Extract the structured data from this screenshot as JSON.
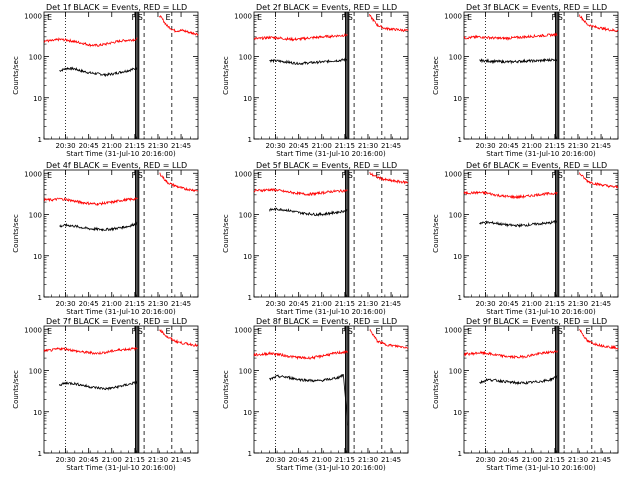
{
  "colors": {
    "events": "#000000",
    "lld": "#ff0000",
    "axes": "#000000",
    "background": "#ffffff"
  },
  "shared": {
    "ylabel": "Counts/sec",
    "xlabel": "Start Time (31-Jul-10 20:16:00)",
    "yticks": [
      1,
      10,
      100,
      1000
    ],
    "ytick_labels": [
      "1",
      "10",
      "100",
      "1000"
    ],
    "xtick_labels": [
      "20:30",
      "20:45",
      "21:00",
      "21:15",
      "21:30",
      "21:45"
    ],
    "xtick_values_min": [
      14,
      29,
      44,
      59,
      74,
      89
    ],
    "xlim_min": [
      0,
      100
    ],
    "ylim": [
      1,
      1200
    ],
    "yscale": "log",
    "marker_labels": [
      "F",
      "S",
      "E"
    ]
  },
  "chart_data": [
    {
      "type": "line",
      "title": "Det 1f BLACK = Events, RED = LLD",
      "series": [
        {
          "name": "BLACK = Events",
          "start_min": 10,
          "x": [
            10,
            15,
            20,
            25,
            30,
            35,
            40,
            45,
            50,
            55,
            60,
            61,
            62,
            75,
            80,
            85,
            90,
            95,
            100
          ],
          "values": [
            45,
            52,
            50,
            44,
            40,
            38,
            36,
            38,
            42,
            46,
            52,
            55,
            null,
            null,
            null,
            null,
            null,
            null,
            null
          ]
        },
        {
          "name": "RED = LLD",
          "start_min": 0,
          "x": [
            0,
            5,
            10,
            15,
            20,
            25,
            30,
            35,
            40,
            45,
            50,
            55,
            60,
            61,
            62,
            75,
            80,
            85,
            90,
            95,
            100
          ],
          "values": [
            240,
            240,
            260,
            250,
            230,
            210,
            190,
            185,
            200,
            220,
            240,
            250,
            260,
            270,
            null,
            1000,
            550,
            420,
            430,
            380,
            350
          ]
        }
      ],
      "markers": {
        "flare_lines_min": [
          59.5,
          60.5,
          61.5
        ],
        "dotted_min": [
          14
        ],
        "dashed_min": [
          65,
          83
        ]
      }
    },
    {
      "type": "line",
      "title": "Det 2f BLACK = Events, RED = LLD",
      "series": [
        {
          "name": "BLACK = Events",
          "start_min": 10,
          "x": [
            10,
            15,
            20,
            25,
            30,
            35,
            40,
            45,
            50,
            55,
            60,
            61,
            62,
            75,
            80,
            85,
            90,
            95,
            100
          ],
          "values": [
            80,
            78,
            75,
            70,
            68,
            70,
            72,
            74,
            78,
            80,
            85,
            88,
            null,
            null,
            null,
            null,
            null,
            null,
            null
          ]
        },
        {
          "name": "RED = LLD",
          "start_min": 0,
          "x": [
            0,
            5,
            10,
            15,
            20,
            25,
            30,
            35,
            40,
            45,
            50,
            55,
            60,
            61,
            62,
            75,
            80,
            85,
            90,
            95,
            100
          ],
          "values": [
            270,
            275,
            290,
            285,
            270,
            260,
            265,
            280,
            290,
            300,
            310,
            320,
            330,
            340,
            null,
            1000,
            580,
            480,
            460,
            440,
            420
          ]
        }
      ],
      "markers": {
        "flare_lines_min": [
          59.5,
          60.5,
          61.5
        ],
        "dotted_min": [
          14
        ],
        "dashed_min": [
          65,
          83
        ]
      }
    },
    {
      "type": "line",
      "title": "Det 3f BLACK = Events, RED = LLD",
      "series": [
        {
          "name": "BLACK = Events",
          "start_min": 10,
          "x": [
            10,
            15,
            20,
            25,
            30,
            35,
            40,
            45,
            50,
            55,
            60,
            61,
            62,
            75,
            80,
            85,
            90,
            95,
            100
          ],
          "values": [
            80,
            78,
            76,
            75,
            74,
            76,
            78,
            78,
            80,
            82,
            85,
            88,
            null,
            null,
            null,
            null,
            null,
            null,
            null
          ]
        },
        {
          "name": "RED = LLD",
          "start_min": 0,
          "x": [
            0,
            5,
            10,
            15,
            20,
            25,
            30,
            35,
            40,
            45,
            50,
            55,
            60,
            61,
            62,
            75,
            80,
            85,
            90,
            95,
            100
          ],
          "values": [
            280,
            290,
            300,
            290,
            280,
            275,
            280,
            290,
            300,
            310,
            320,
            330,
            340,
            350,
            null,
            1000,
            600,
            520,
            480,
            440,
            420
          ]
        }
      ],
      "markers": {
        "flare_lines_min": [
          59.5,
          60.5,
          61.5
        ],
        "dotted_min": [
          14
        ],
        "dashed_min": [
          65,
          83
        ]
      }
    },
    {
      "type": "line",
      "title": "Det 4f BLACK = Events, RED = LLD",
      "series": [
        {
          "name": "BLACK = Events",
          "start_min": 10,
          "x": [
            10,
            15,
            20,
            25,
            30,
            35,
            40,
            45,
            50,
            55,
            60,
            61,
            62,
            75,
            80,
            85,
            90,
            95,
            100
          ],
          "values": [
            52,
            55,
            52,
            48,
            45,
            44,
            43,
            45,
            48,
            52,
            60,
            65,
            null,
            null,
            null,
            null,
            null,
            null,
            null
          ]
        },
        {
          "name": "RED = LLD",
          "start_min": 0,
          "x": [
            0,
            5,
            10,
            15,
            20,
            25,
            30,
            35,
            40,
            45,
            50,
            55,
            60,
            61,
            62,
            75,
            80,
            85,
            90,
            95,
            100
          ],
          "values": [
            230,
            225,
            240,
            230,
            210,
            195,
            185,
            180,
            190,
            200,
            220,
            230,
            240,
            250,
            null,
            1000,
            600,
            500,
            430,
            400,
            380
          ]
        }
      ],
      "markers": {
        "flare_lines_min": [
          59.5,
          60.5,
          61.5
        ],
        "dotted_min": [
          14
        ],
        "dashed_min": [
          65,
          83
        ]
      }
    },
    {
      "type": "line",
      "title": "Det 5f BLACK = Events, RED = LLD",
      "series": [
        {
          "name": "BLACK = Events",
          "start_min": 10,
          "x": [
            10,
            15,
            20,
            25,
            30,
            35,
            40,
            45,
            50,
            55,
            60,
            61,
            62,
            75,
            80,
            85,
            90,
            95,
            100
          ],
          "values": [
            130,
            135,
            130,
            120,
            110,
            105,
            100,
            102,
            108,
            115,
            125,
            130,
            null,
            null,
            null,
            null,
            null,
            null,
            null
          ]
        },
        {
          "name": "RED = LLD",
          "start_min": 0,
          "x": [
            0,
            5,
            10,
            15,
            20,
            25,
            30,
            35,
            40,
            45,
            50,
            55,
            60,
            61,
            62,
            75,
            80,
            85,
            90,
            95,
            100
          ],
          "values": [
            380,
            385,
            400,
            390,
            360,
            340,
            320,
            310,
            320,
            340,
            360,
            370,
            380,
            390,
            null,
            1000,
            800,
            700,
            650,
            620,
            600
          ]
        }
      ],
      "markers": {
        "flare_lines_min": [
          59.5,
          60.5,
          61.5
        ],
        "dotted_min": [
          14
        ],
        "dashed_min": [
          65,
          83
        ]
      }
    },
    {
      "type": "line",
      "title": "Det 6f BLACK = Events, RED = LLD",
      "series": [
        {
          "name": "BLACK = Events",
          "start_min": 10,
          "x": [
            10,
            15,
            20,
            25,
            30,
            35,
            40,
            45,
            50,
            55,
            60,
            61,
            62,
            75,
            80,
            85,
            90,
            95,
            100
          ],
          "values": [
            62,
            64,
            62,
            58,
            55,
            54,
            55,
            58,
            60,
            62,
            68,
            72,
            null,
            null,
            null,
            null,
            null,
            null,
            null
          ]
        },
        {
          "name": "RED = LLD",
          "start_min": 0,
          "x": [
            0,
            5,
            10,
            15,
            20,
            25,
            30,
            35,
            40,
            45,
            50,
            55,
            60,
            61,
            62,
            75,
            80,
            85,
            90,
            95,
            100
          ],
          "values": [
            330,
            335,
            340,
            330,
            300,
            280,
            270,
            265,
            275,
            290,
            310,
            320,
            330,
            340,
            null,
            1000,
            650,
            560,
            520,
            480,
            460
          ]
        }
      ],
      "markers": {
        "flare_lines_min": [
          59.5,
          60.5,
          61.5
        ],
        "dotted_min": [
          14
        ],
        "dashed_min": [
          65,
          83
        ]
      }
    },
    {
      "type": "line",
      "title": "Det 7f BLACK = Events, RED = LLD",
      "series": [
        {
          "name": "BLACK = Events",
          "start_min": 10,
          "x": [
            10,
            15,
            20,
            25,
            30,
            35,
            40,
            45,
            50,
            55,
            60,
            61,
            62,
            75,
            80,
            85,
            90,
            95,
            100
          ],
          "values": [
            45,
            50,
            48,
            44,
            40,
            38,
            36,
            38,
            42,
            46,
            52,
            55,
            null,
            null,
            null,
            null,
            null,
            null,
            null
          ]
        },
        {
          "name": "RED = LLD",
          "start_min": 0,
          "x": [
            0,
            5,
            10,
            15,
            20,
            25,
            30,
            35,
            40,
            45,
            50,
            55,
            60,
            61,
            62,
            75,
            80,
            85,
            90,
            95,
            100
          ],
          "values": [
            300,
            310,
            340,
            330,
            300,
            280,
            270,
            260,
            275,
            300,
            320,
            330,
            340,
            350,
            null,
            1000,
            650,
            520,
            460,
            430,
            400
          ]
        }
      ],
      "markers": {
        "flare_lines_min": [
          59.5,
          60.5,
          61.5
        ],
        "dotted_min": [
          14
        ],
        "dashed_min": [
          65,
          83
        ]
      }
    },
    {
      "type": "line",
      "title": "Det 8f BLACK = Events, RED = LLD",
      "series": [
        {
          "name": "BLACK = Events",
          "start_min": 10,
          "x": [
            10,
            15,
            20,
            25,
            30,
            35,
            40,
            45,
            50,
            55,
            58,
            60,
            61,
            62,
            75,
            80,
            85,
            90,
            95,
            100
          ],
          "values": [
            60,
            72,
            70,
            65,
            60,
            58,
            56,
            58,
            62,
            68,
            80,
            12,
            3,
            null,
            null,
            null,
            null,
            null,
            null,
            null
          ]
        },
        {
          "name": "RED = LLD",
          "start_min": 0,
          "x": [
            0,
            5,
            10,
            15,
            20,
            25,
            30,
            35,
            40,
            45,
            50,
            55,
            60,
            61,
            62,
            75,
            80,
            85,
            90,
            95,
            100
          ],
          "values": [
            240,
            245,
            260,
            250,
            230,
            215,
            205,
            200,
            210,
            230,
            250,
            270,
            280,
            290,
            null,
            1000,
            520,
            430,
            400,
            380,
            360
          ]
        }
      ],
      "markers": {
        "flare_lines_min": [
          59.5,
          60.5,
          61.5
        ],
        "dotted_min": [
          14
        ],
        "dashed_min": [
          65,
          83
        ]
      }
    },
    {
      "type": "line",
      "title": "Det 9f BLACK = Events, RED = LLD",
      "series": [
        {
          "name": "BLACK = Events",
          "start_min": 10,
          "x": [
            10,
            15,
            20,
            25,
            30,
            35,
            40,
            45,
            50,
            55,
            60,
            61,
            62,
            75,
            80,
            85,
            90,
            95,
            100
          ],
          "values": [
            50,
            60,
            58,
            55,
            52,
            50,
            50,
            52,
            55,
            58,
            70,
            80,
            null,
            null,
            null,
            null,
            null,
            null,
            null
          ]
        },
        {
          "name": "RED = LLD",
          "start_min": 0,
          "x": [
            0,
            5,
            10,
            15,
            20,
            25,
            30,
            35,
            40,
            45,
            50,
            55,
            60,
            61,
            62,
            75,
            80,
            85,
            90,
            95,
            100
          ],
          "values": [
            250,
            255,
            270,
            260,
            240,
            225,
            215,
            210,
            220,
            240,
            260,
            275,
            290,
            300,
            null,
            1000,
            520,
            440,
            400,
            370,
            350
          ]
        }
      ],
      "markers": {
        "flare_lines_min": [
          59.5,
          60.5,
          61.5
        ],
        "dotted_min": [
          14
        ],
        "dashed_min": [
          65,
          83
        ]
      }
    }
  ]
}
